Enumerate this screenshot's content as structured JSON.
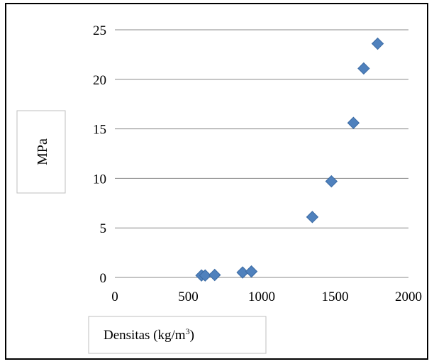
{
  "chart_data": {
    "type": "scatter",
    "xlabel": "Densitas (kg/m",
    "xlabel_sup": "3",
    "xlabel_suffix": ")",
    "ylabel": "MPa",
    "xlim": [
      0,
      2000
    ],
    "ylim": [
      0,
      25
    ],
    "xticks": [
      "0",
      "500",
      "1000",
      "1500",
      "2000"
    ],
    "yticks": [
      "0",
      "5",
      "10",
      "15",
      "20",
      "25"
    ],
    "grid": "horizontal",
    "marker": "diamond",
    "marker_color": "#4F81BD",
    "points": [
      {
        "x": 590,
        "y": 0.2
      },
      {
        "x": 615,
        "y": 0.2
      },
      {
        "x": 680,
        "y": 0.25
      },
      {
        "x": 870,
        "y": 0.5
      },
      {
        "x": 930,
        "y": 0.6
      },
      {
        "x": 1345,
        "y": 6.1
      },
      {
        "x": 1475,
        "y": 9.7
      },
      {
        "x": 1625,
        "y": 15.6
      },
      {
        "x": 1695,
        "y": 21.1
      },
      {
        "x": 1790,
        "y": 23.6
      }
    ]
  }
}
